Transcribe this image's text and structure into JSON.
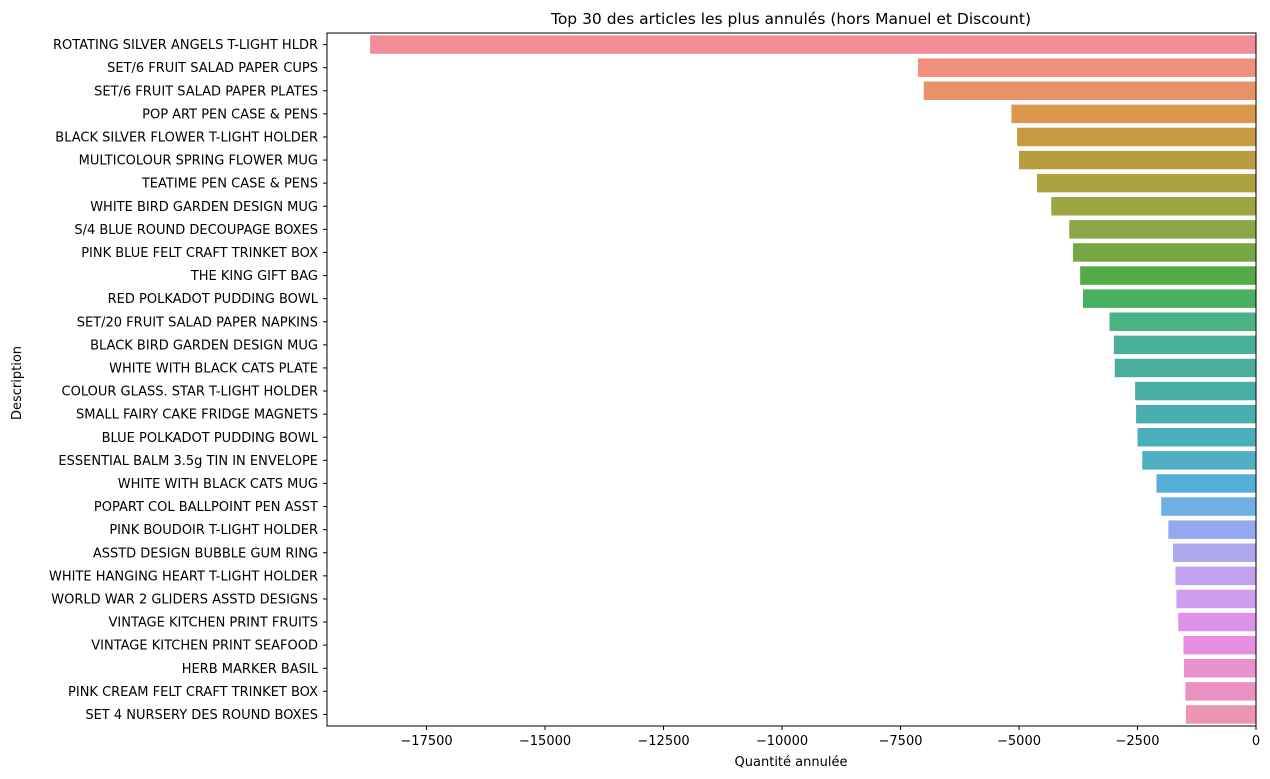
{
  "chart_data": {
    "type": "bar",
    "orientation": "horizontal",
    "title": "Top 30 des articles les plus annulés (hors Manuel et Discount)",
    "xlabel": "Quantité annulée",
    "ylabel": "Description",
    "xlim": [
      -19600,
      0
    ],
    "xticks": [
      -17500,
      -15000,
      -12500,
      -10000,
      -7500,
      -5000,
      -2500,
      0
    ],
    "xtick_labels": [
      "−17500",
      "−15000",
      "−12500",
      "−10000",
      "−7500",
      "−5000",
      "−2500",
      "0"
    ],
    "grid": false,
    "categories": [
      "ROTATING SILVER ANGELS T-LIGHT HLDR",
      "SET/6 FRUIT SALAD PAPER CUPS",
      "SET/6 FRUIT SALAD  PAPER PLATES",
      "POP ART PEN CASE & PENS",
      "BLACK SILVER FLOWER T-LIGHT HOLDER",
      "MULTICOLOUR SPRING FLOWER MUG",
      "TEATIME PEN CASE & PENS",
      "WHITE BIRD GARDEN DESIGN MUG",
      "S/4 BLUE ROUND DECOUPAGE BOXES",
      "PINK BLUE FELT CRAFT TRINKET BOX",
      "THE KING GIFT BAG",
      "RED POLKADOT PUDDING BOWL",
      "SET/20 FRUIT SALAD PAPER NAPKINS ",
      "BLACK BIRD GARDEN DESIGN MUG",
      "WHITE WITH BLACK CATS PLATE",
      "COLOUR GLASS. STAR T-LIGHT HOLDER",
      "SMALL FAIRY CAKE FRIDGE MAGNETS",
      "BLUE POLKADOT PUDDING BOWL",
      "ESSENTIAL BALM 3.5g TIN IN ENVELOPE",
      "WHITE WITH BLACK CATS MUG",
      "POPART COL BALLPOINT PEN ASST",
      "PINK BOUDOIR T-LIGHT HOLDER",
      "ASSTD DESIGN BUBBLE GUM RING",
      "WHITE HANGING HEART T-LIGHT HOLDER",
      "WORLD WAR 2 GLIDERS ASSTD DESIGNS",
      "VINTAGE KITCHEN PRINT FRUITS",
      "VINTAGE KITCHEN PRINT SEAFOOD",
      "HERB MARKER BASIL",
      "PINK CREAM FELT CRAFT TRINKET BOX ",
      "SET 4 NURSERY DES ROUND BOXES"
    ],
    "values": [
      -18690,
      -7130,
      -7010,
      -5160,
      -5040,
      -5000,
      -4620,
      -4320,
      -3940,
      -3860,
      -3710,
      -3650,
      -3090,
      -3000,
      -2980,
      -2550,
      -2530,
      -2500,
      -2400,
      -2100,
      -2000,
      -1850,
      -1750,
      -1700,
      -1680,
      -1640,
      -1530,
      -1520,
      -1490,
      -1480
    ],
    "colors": [
      "#f08e98",
      "#f08f7a",
      "#e8926a",
      "#d9984b",
      "#c99b41",
      "#b99c41",
      "#aca040",
      "#9da442",
      "#8ba644",
      "#75a844",
      "#55ab48",
      "#48b05f",
      "#4ab283",
      "#49b096",
      "#4aaf9f",
      "#49ada8",
      "#4aaeaf",
      "#4bafbb",
      "#4fb0c5",
      "#55aed8",
      "#6fb0e4",
      "#93a8ee",
      "#aea7ee",
      "#c3a1ee",
      "#cf9dec",
      "#de92ea",
      "#e78ee0",
      "#e990d0",
      "#ea91c1",
      "#eb95b1"
    ]
  }
}
